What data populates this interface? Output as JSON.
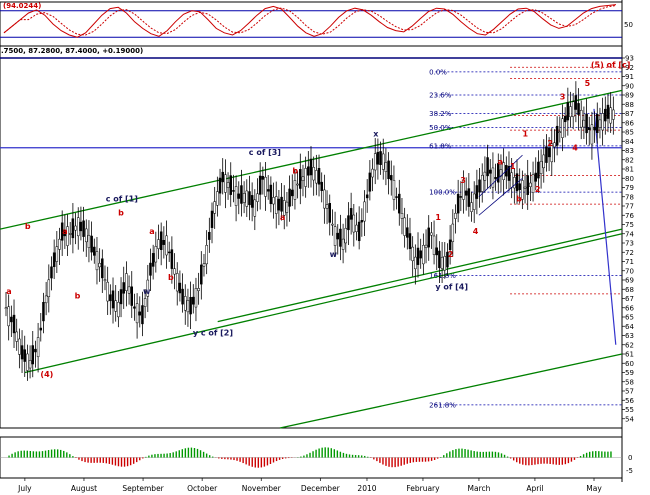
{
  "chart_data": {
    "type": "candlestick",
    "panels": {
      "oscillator": {
        "header_value": "(94.0244)",
        "ticks": [
          "50"
        ],
        "ylim": [
          0,
          100
        ],
        "levels": [
          20,
          80
        ]
      },
      "price": {
        "header": ".7500, 87.2800, 87.4000, +0.19000)",
        "ylim": [
          53,
          93
        ],
        "ticks": [
          "93",
          "92",
          "91",
          "90",
          "89",
          "88",
          "87",
          "86",
          "85",
          "84",
          "83",
          "82",
          "81",
          "80",
          "79",
          "78",
          "77",
          "76",
          "75",
          "74",
          "73",
          "72",
          "71",
          "70",
          "69",
          "68",
          "67",
          "66",
          "65",
          "64",
          "63",
          "62",
          "61",
          "60",
          "59",
          "58",
          "57",
          "56",
          "55",
          "54"
        ],
        "x_labels": [
          "July",
          "August",
          "September",
          "October",
          "November",
          "December",
          "2010",
          "February",
          "March",
          "April",
          "May"
        ],
        "close_series": [
          66,
          64,
          61,
          60,
          62,
          67,
          71,
          74,
          74,
          75,
          74,
          72,
          70,
          67,
          66,
          69,
          66,
          65,
          70,
          73,
          73,
          70,
          67,
          66,
          68,
          72,
          77,
          80,
          79,
          78,
          78,
          77,
          80,
          78,
          77,
          77,
          79,
          80,
          81,
          80,
          77,
          74,
          73,
          76,
          74,
          78,
          82,
          82,
          80,
          77,
          74,
          71,
          72,
          74,
          71,
          71,
          76,
          79,
          77,
          79,
          81,
          80,
          81,
          80,
          79,
          79,
          80,
          82,
          83,
          85,
          87,
          88,
          86,
          85,
          86,
          87
        ],
        "fib_levels": [
          {
            "label": "0.0%",
            "value": 91.5
          },
          {
            "label": "23.6%",
            "value": 89.0
          },
          {
            "label": "38.2%",
            "value": 87.0
          },
          {
            "label": "50.0%",
            "value": 85.5
          },
          {
            "label": "61.8%",
            "value": 83.5
          },
          {
            "label": "100.0%",
            "value": 78.5
          },
          {
            "label": "161.8%",
            "value": 69.5
          },
          {
            "label": "261.8%",
            "value": 55.5
          }
        ],
        "wave_labels_major": [
          {
            "text": "c of [1]",
            "x": 0.17,
            "y": 77.5
          },
          {
            "text": "c of [3]",
            "x": 0.4,
            "y": 82.5
          },
          {
            "text": "y c of [2]",
            "x": 0.31,
            "y": 63.0
          },
          {
            "text": "w",
            "x": 0.23,
            "y": 67.5
          },
          {
            "text": "w",
            "x": 0.53,
            "y": 71.5
          },
          {
            "text": "x",
            "x": 0.6,
            "y": 84.5
          },
          {
            "text": "y of [4]",
            "x": 0.7,
            "y": 68.0
          }
        ],
        "wave_labels_minor": [
          {
            "text": "(4)",
            "x": 0.065,
            "y": 58.5
          },
          {
            "text": "(5) of [c]",
            "x": 0.95,
            "y": 92.0
          },
          {
            "text": "a",
            "x": 0.01,
            "y": 67.5
          },
          {
            "text": "b",
            "x": 0.04,
            "y": 74.5
          },
          {
            "text": "a",
            "x": 0.1,
            "y": 74.0
          },
          {
            "text": "b",
            "x": 0.12,
            "y": 67.0
          },
          {
            "text": "b",
            "x": 0.19,
            "y": 76.0
          },
          {
            "text": "a",
            "x": 0.24,
            "y": 74.0
          },
          {
            "text": "b",
            "x": 0.27,
            "y": 69.0
          },
          {
            "text": "a",
            "x": 0.45,
            "y": 75.5
          },
          {
            "text": "b",
            "x": 0.47,
            "y": 80.5
          },
          {
            "text": "1",
            "x": 0.7,
            "y": 75.5
          },
          {
            "text": "2",
            "x": 0.72,
            "y": 71.5
          },
          {
            "text": "3",
            "x": 0.74,
            "y": 79.5
          },
          {
            "text": "4",
            "x": 0.76,
            "y": 74.0
          },
          {
            "text": "a",
            "x": 0.8,
            "y": 81.5
          },
          {
            "text": "b",
            "x": 0.83,
            "y": 77.5
          },
          {
            "text": "1",
            "x": 0.82,
            "y": 81.0
          },
          {
            "text": "2",
            "x": 0.86,
            "y": 78.5
          },
          {
            "text": "1",
            "x": 0.84,
            "y": 84.5
          },
          {
            "text": "2",
            "x": 0.88,
            "y": 83.5
          },
          {
            "text": "3",
            "x": 0.9,
            "y": 88.5
          },
          {
            "text": "4",
            "x": 0.92,
            "y": 83.0
          },
          {
            "text": "5",
            "x": 0.94,
            "y": 90.0
          }
        ]
      },
      "histogram": {
        "ticks": [
          "0",
          "-5"
        ],
        "ylim": [
          -8,
          8
        ]
      }
    },
    "colors": {
      "candle": "#000000",
      "channel": "#008000",
      "fib": "#0000aa",
      "projection": "#3333cc",
      "oscillator_k": "#cc0000",
      "oscillator_d": "#cc0000",
      "hist_pos": "#009900",
      "hist_neg": "#cc0000"
    },
    "osc_series": [
      30,
      45,
      60,
      75,
      82,
      70,
      50,
      35,
      25,
      20,
      30,
      50,
      70,
      85,
      88,
      75,
      55,
      40,
      28,
      22,
      35,
      55,
      72,
      80,
      78,
      60,
      40,
      30,
      25,
      35,
      52,
      70,
      85,
      90,
      84,
      65,
      45,
      30,
      22,
      28,
      45,
      65,
      80,
      86,
      82,
      70,
      55,
      42,
      35,
      32,
      45,
      62,
      78,
      86,
      84,
      72,
      55,
      40,
      28,
      25,
      38,
      55,
      72,
      84,
      86,
      78,
      62,
      48,
      40,
      45,
      60,
      75,
      85,
      90,
      92,
      94
    ]
  }
}
